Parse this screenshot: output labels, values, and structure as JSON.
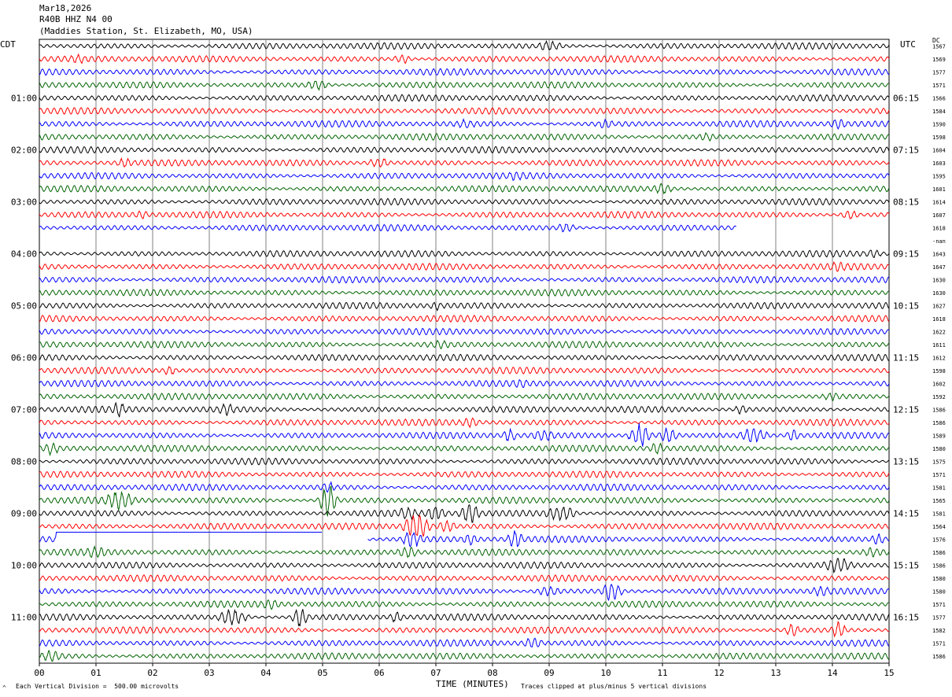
{
  "header": {
    "date": "Mar18,2026",
    "channel": "R40B HHZ N4 00",
    "station": "(Maddies Station, St. Elizabeth, MO, USA)"
  },
  "left_axis_title": "CDT",
  "right_axis_title": "UTC",
  "dc_title": "DC",
  "footer": {
    "division_note": "Each Vertical Division =  500.00 microvolts",
    "clip_note": "Traces clipped at plus/minus 5 vertical divisions",
    "corner_mark": "^"
  },
  "colors": {
    "trace_cycle": [
      "#000000",
      "#ff0000",
      "#0000ff",
      "#006400"
    ],
    "grid": "#808080"
  },
  "chart_data": {
    "type": "line",
    "title": "Mar18,2026",
    "xlabel": "TIME (MINUTES)",
    "ylabel": "",
    "xlim": [
      0,
      15
    ],
    "x_ticks": [
      "00",
      "01",
      "02",
      "03",
      "04",
      "05",
      "06",
      "07",
      "08",
      "09",
      "10",
      "11",
      "12",
      "13",
      "14",
      "15"
    ],
    "grid": true,
    "rows_per_hour": 4,
    "left_time_labels": [
      {
        "row": 4,
        "text": "01:00"
      },
      {
        "row": 8,
        "text": "02:00"
      },
      {
        "row": 12,
        "text": "03:00"
      },
      {
        "row": 16,
        "text": "04:00"
      },
      {
        "row": 20,
        "text": "05:00"
      },
      {
        "row": 24,
        "text": "06:00"
      },
      {
        "row": 28,
        "text": "07:00"
      },
      {
        "row": 32,
        "text": "08:00"
      },
      {
        "row": 36,
        "text": "09:00"
      },
      {
        "row": 40,
        "text": "10:00"
      },
      {
        "row": 44,
        "text": "11:00"
      }
    ],
    "right_time_labels": [
      {
        "row": 4,
        "text": "06:15"
      },
      {
        "row": 8,
        "text": "07:15"
      },
      {
        "row": 12,
        "text": "08:15"
      },
      {
        "row": 16,
        "text": "09:15"
      },
      {
        "row": 20,
        "text": "10:15"
      },
      {
        "row": 24,
        "text": "11:15"
      },
      {
        "row": 28,
        "text": "12:15"
      },
      {
        "row": 32,
        "text": "13:15"
      },
      {
        "row": 36,
        "text": "14:15"
      },
      {
        "row": 40,
        "text": "15:15"
      },
      {
        "row": 44,
        "text": "16:15"
      }
    ],
    "dc_offsets": [
      "1567",
      "1569",
      "1577",
      "1571",
      "1566",
      "1584",
      "1590",
      "1598",
      "1604",
      "1603",
      "1595",
      "1601",
      "1614",
      "1607",
      "1618",
      "-nan",
      "1643",
      "1647",
      "1630",
      "1630",
      "1627",
      "1618",
      "1622",
      "1611",
      "1612",
      "1598",
      "1602",
      "1592",
      "1586",
      "1586",
      "1589",
      "1580",
      "1575",
      "1571",
      "1581",
      "1565",
      "1581",
      "1564",
      "1576",
      "1586",
      "1586",
      "1580",
      "1580",
      "1571",
      "1577",
      "1582",
      "1571",
      "1586"
    ],
    "traces": [
      {
        "row": 0,
        "end": 15,
        "events": [
          {
            "t": 9.0,
            "a": 1.3,
            "w": 0.6
          }
        ]
      },
      {
        "row": 1,
        "end": 15,
        "events": [
          {
            "t": 0.7,
            "a": 1.2,
            "w": 0.4
          },
          {
            "t": 6.4,
            "a": 1.2,
            "w": 0.4
          }
        ]
      },
      {
        "row": 2,
        "end": 15,
        "events": []
      },
      {
        "row": 3,
        "end": 15,
        "events": [
          {
            "t": 4.9,
            "a": 1.3,
            "w": 0.5
          }
        ]
      },
      {
        "row": 4,
        "end": 15,
        "events": []
      },
      {
        "row": 5,
        "end": 15,
        "events": []
      },
      {
        "row": 6,
        "end": 15,
        "events": [
          {
            "t": 7.5,
            "a": 1.2,
            "w": 0.4
          },
          {
            "t": 10.0,
            "a": 1.2,
            "w": 0.4
          },
          {
            "t": 14.1,
            "a": 1.3,
            "w": 0.4
          }
        ]
      },
      {
        "row": 7,
        "end": 15,
        "events": [
          {
            "t": 11.8,
            "a": 1.2,
            "w": 0.4
          }
        ]
      },
      {
        "row": 8,
        "end": 15,
        "events": []
      },
      {
        "row": 9,
        "end": 15,
        "events": [
          {
            "t": 1.5,
            "a": 1.2,
            "w": 0.4
          },
          {
            "t": 6.0,
            "a": 1.3,
            "w": 0.5
          }
        ]
      },
      {
        "row": 10,
        "end": 15,
        "events": [
          {
            "t": 8.4,
            "a": 1.2,
            "w": 0.4
          }
        ]
      },
      {
        "row": 11,
        "end": 15,
        "events": [
          {
            "t": 11.0,
            "a": 1.4,
            "w": 0.4
          }
        ]
      },
      {
        "row": 12,
        "end": 15,
        "events": []
      },
      {
        "row": 13,
        "end": 15,
        "events": [
          {
            "t": 1.8,
            "a": 1.2,
            "w": 0.3
          },
          {
            "t": 14.3,
            "a": 1.2,
            "w": 0.4
          }
        ]
      },
      {
        "row": 14,
        "end": 12.3,
        "events": [
          {
            "t": 9.3,
            "a": 1.3,
            "w": 0.4
          }
        ]
      },
      {
        "row": 15,
        "end": 0,
        "events": []
      },
      {
        "row": 16,
        "end": 15,
        "events": [
          {
            "t": 14.7,
            "a": 1.2,
            "w": 0.4
          }
        ]
      },
      {
        "row": 17,
        "end": 15,
        "events": [
          {
            "t": 14.1,
            "a": 1.3,
            "w": 0.5
          }
        ]
      },
      {
        "row": 18,
        "end": 15,
        "events": []
      },
      {
        "row": 19,
        "end": 15,
        "events": []
      },
      {
        "row": 20,
        "end": 15,
        "events": [
          {
            "t": 7.0,
            "a": 1.2,
            "w": 0.3
          }
        ]
      },
      {
        "row": 21,
        "end": 15,
        "events": []
      },
      {
        "row": 22,
        "end": 15,
        "events": []
      },
      {
        "row": 23,
        "end": 15,
        "events": [
          {
            "t": 7.1,
            "a": 1.2,
            "w": 0.5
          }
        ]
      },
      {
        "row": 24,
        "end": 15,
        "events": []
      },
      {
        "row": 25,
        "end": 15,
        "events": [
          {
            "t": 2.3,
            "a": 1.2,
            "w": 0.3
          }
        ]
      },
      {
        "row": 26,
        "end": 15,
        "events": [
          {
            "t": 8.5,
            "a": 1.3,
            "w": 0.4
          }
        ]
      },
      {
        "row": 27,
        "end": 15,
        "events": [
          {
            "t": 14.0,
            "a": 1.2,
            "w": 0.4
          }
        ]
      },
      {
        "row": 28,
        "end": 15,
        "events": [
          {
            "t": 1.4,
            "a": 2.0,
            "w": 0.3
          },
          {
            "t": 3.3,
            "a": 1.5,
            "w": 0.4
          },
          {
            "t": 12.4,
            "a": 1.3,
            "w": 0.3
          }
        ]
      },
      {
        "row": 29,
        "end": 15,
        "events": [
          {
            "t": 7.6,
            "a": 1.3,
            "w": 0.4
          }
        ]
      },
      {
        "row": 30,
        "end": 15,
        "events": [
          {
            "t": 8.3,
            "a": 1.8,
            "w": 0.3
          },
          {
            "t": 8.9,
            "a": 1.6,
            "w": 0.5
          },
          {
            "t": 10.6,
            "a": 3.0,
            "w": 0.4
          },
          {
            "t": 11.1,
            "a": 2.0,
            "w": 0.4
          },
          {
            "t": 12.6,
            "a": 2.0,
            "w": 0.6
          },
          {
            "t": 13.3,
            "a": 1.5,
            "w": 0.3
          }
        ]
      },
      {
        "row": 31,
        "end": 15,
        "events": [
          {
            "t": 0.2,
            "a": 1.6,
            "w": 0.4
          },
          {
            "t": 10.9,
            "a": 1.5,
            "w": 0.3
          }
        ]
      },
      {
        "row": 32,
        "end": 15,
        "events": []
      },
      {
        "row": 33,
        "end": 15,
        "events": []
      },
      {
        "row": 34,
        "end": 15,
        "events": [
          {
            "t": 5.1,
            "a": 1.5,
            "w": 0.3
          }
        ]
      },
      {
        "row": 35,
        "end": 15,
        "events": [
          {
            "t": 1.4,
            "a": 2.5,
            "w": 0.6
          },
          {
            "t": 5.1,
            "a": 4.5,
            "w": 0.3
          }
        ]
      },
      {
        "row": 36,
        "end": 15,
        "events": [
          {
            "t": 6.5,
            "a": 1.6,
            "w": 0.5
          },
          {
            "t": 7.0,
            "a": 2.0,
            "w": 0.4
          },
          {
            "t": 7.6,
            "a": 2.5,
            "w": 0.4
          },
          {
            "t": 9.2,
            "a": 2.0,
            "w": 0.6
          }
        ]
      },
      {
        "row": 37,
        "end": 15,
        "events": [
          {
            "t": 6.65,
            "a": 3.5,
            "w": 0.5
          },
          {
            "t": 7.2,
            "a": 1.6,
            "w": 0.4
          }
        ]
      },
      {
        "row": 38,
        "end": 15,
        "flat": [
          0.3,
          5.0
        ],
        "gap": [
          5.0,
          5.8
        ],
        "events": [
          {
            "t": 6.6,
            "a": 2.0,
            "w": 0.5
          },
          {
            "t": 7.6,
            "a": 1.5,
            "w": 0.4
          },
          {
            "t": 8.4,
            "a": 2.5,
            "w": 0.3
          },
          {
            "t": 14.8,
            "a": 1.5,
            "w": 0.3
          }
        ]
      },
      {
        "row": 39,
        "end": 15,
        "events": [
          {
            "t": 1.0,
            "a": 1.6,
            "w": 0.5
          },
          {
            "t": 6.5,
            "a": 1.5,
            "w": 0.5
          },
          {
            "t": 14.7,
            "a": 1.4,
            "w": 0.4
          }
        ]
      },
      {
        "row": 40,
        "end": 15,
        "events": [
          {
            "t": 14.1,
            "a": 2.0,
            "w": 0.6
          }
        ]
      },
      {
        "row": 41,
        "end": 15,
        "events": []
      },
      {
        "row": 42,
        "end": 15,
        "events": [
          {
            "t": 9.0,
            "a": 1.2,
            "w": 0.6
          },
          {
            "t": 10.1,
            "a": 2.5,
            "w": 0.4
          },
          {
            "t": 13.8,
            "a": 1.5,
            "w": 0.4
          }
        ]
      },
      {
        "row": 43,
        "end": 15,
        "events": [
          {
            "t": 4.1,
            "a": 1.3,
            "w": 0.5
          }
        ]
      },
      {
        "row": 44,
        "end": 15,
        "events": [
          {
            "t": 3.4,
            "a": 2.0,
            "w": 0.6
          },
          {
            "t": 4.6,
            "a": 2.8,
            "w": 0.3
          },
          {
            "t": 6.3,
            "a": 1.4,
            "w": 0.3
          }
        ]
      },
      {
        "row": 45,
        "end": 15,
        "events": [
          {
            "t": 13.3,
            "a": 1.8,
            "w": 0.3
          },
          {
            "t": 14.1,
            "a": 2.2,
            "w": 0.3
          }
        ]
      },
      {
        "row": 46,
        "end": 15,
        "events": [
          {
            "t": 8.7,
            "a": 1.3,
            "w": 0.5
          }
        ]
      },
      {
        "row": 47,
        "end": 15,
        "events": [
          {
            "t": 0.2,
            "a": 1.5,
            "w": 0.5
          }
        ]
      }
    ]
  }
}
